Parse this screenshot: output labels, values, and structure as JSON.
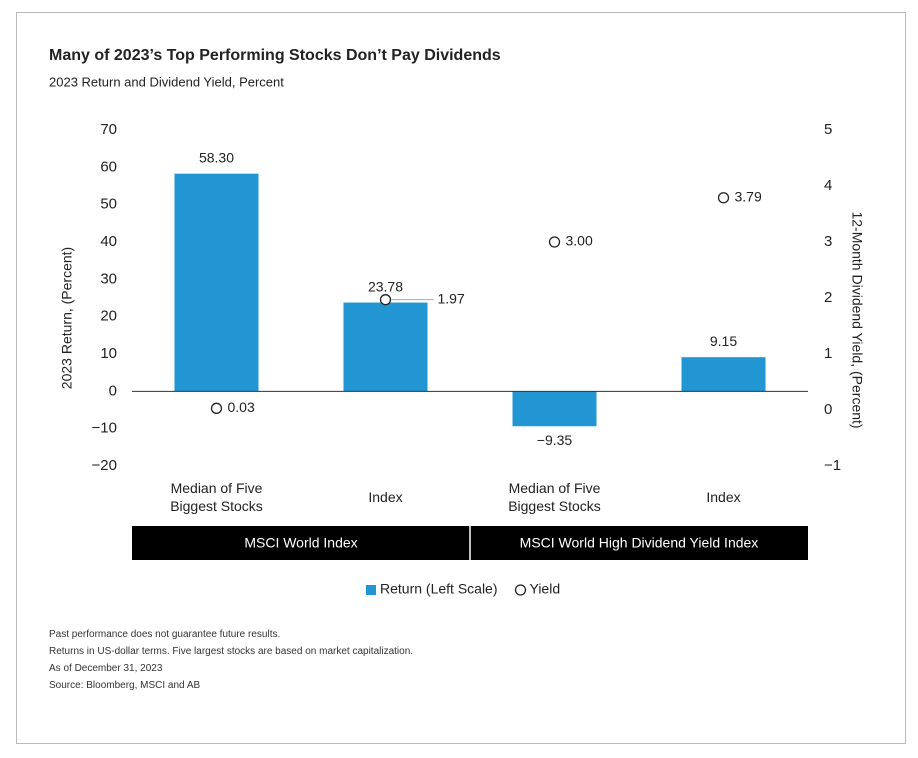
{
  "chart_data": {
    "type": "bar",
    "title": "Many of 2023’s Top Performing Stocks Don’t Pay Dividends",
    "subtitle": "2023 Return and Dividend Yield, Percent",
    "y_label": "2023 Return, (Percent)",
    "y2_label": "12-Month Dividend Yield, (Percent)",
    "categories": [
      "Median of Five Biggest Stocks",
      "Index",
      "Median of Five Biggest Stocks",
      "Index"
    ],
    "groups": [
      {
        "label": "MSCI World Index",
        "count": 2
      },
      {
        "label": "MSCI World High Dividend Yield Index",
        "count": 2
      }
    ],
    "series": [
      {
        "name": "Return (Left Scale)",
        "type": "bar",
        "color": "#2196d3",
        "values": [
          58.3,
          23.78,
          -9.35,
          9.15
        ],
        "value_labels": [
          "58.30",
          "23.78",
          "−9.35",
          "9.15"
        ]
      },
      {
        "name": "Yield",
        "type": "scatter",
        "axis": "y2",
        "color": "#222222",
        "values": [
          0.03,
          1.97,
          3.0,
          3.79
        ],
        "value_labels": [
          "0.03",
          "1.97",
          "3.00",
          "3.79"
        ]
      }
    ],
    "ylim": [
      -20,
      70
    ],
    "yticks": [
      {
        "value": -20,
        "label": "−20"
      },
      {
        "value": -10,
        "label": "−10"
      },
      0,
      10,
      20,
      30,
      40,
      50,
      60,
      70
    ],
    "y2lim": [
      -1,
      5
    ],
    "y2ticks": [
      {
        "value": -1,
        "label": "−1"
      },
      0,
      1,
      2,
      3,
      4,
      5
    ],
    "legend": "bottom",
    "footnotes": [
      "Past performance does not guarantee future results.",
      "Returns in US-dollar terms. Five largest stocks are based on market capitalization.",
      "As of December 31, 2023",
      "Source: Bloomberg, MSCI and AB"
    ]
  }
}
